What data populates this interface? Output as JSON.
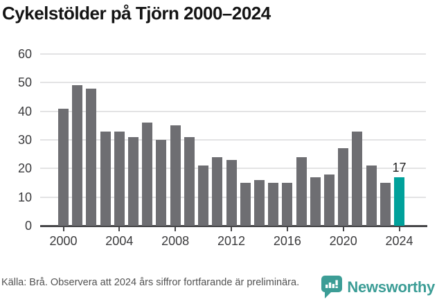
{
  "title": "Cykelstölder på Tjörn 2000–2024",
  "footer": {
    "source": "Källa: Brå. Observera att 2024 års siffror fortfarande är preliminära.",
    "brand": "Newsworthy"
  },
  "colors": {
    "bar": "#6e6e72",
    "highlight": "#00a19b",
    "brand_teal": "#3c9d96",
    "gridline": "#e3e3e4",
    "axis": "#454547"
  },
  "chart_data": {
    "type": "bar",
    "title": "Cykelstölder på Tjörn 2000–2024",
    "categories": [
      2000,
      2001,
      2002,
      2003,
      2004,
      2005,
      2006,
      2007,
      2008,
      2009,
      2010,
      2011,
      2012,
      2013,
      2014,
      2015,
      2016,
      2017,
      2018,
      2019,
      2020,
      2021,
      2022,
      2023,
      2024
    ],
    "values": [
      41,
      49,
      48,
      33,
      33,
      31,
      36,
      30,
      35,
      31,
      21,
      24,
      23,
      15,
      16,
      15,
      15,
      24,
      17,
      18,
      27,
      33,
      21,
      15,
      17
    ],
    "highlight_category": 2024,
    "annotations": [
      {
        "category": 2024,
        "text": "17"
      }
    ],
    "xlabel": "",
    "ylabel": "",
    "ylim": [
      0,
      60
    ],
    "yticks": [
      0,
      10,
      20,
      30,
      40,
      50,
      60
    ],
    "xticks": [
      2000,
      2004,
      2008,
      2012,
      2016,
      2020,
      2024
    ],
    "grid": true,
    "legend": "none"
  }
}
